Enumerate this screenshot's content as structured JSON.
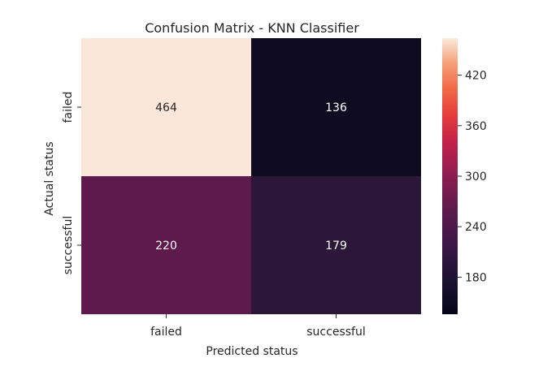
{
  "chart_data": {
    "type": "heatmap",
    "title": "Confusion Matrix - KNN Classifier",
    "xlabel": "Predicted status",
    "ylabel": "Actual status",
    "x_categories": [
      "failed",
      "successful"
    ],
    "y_categories": [
      "failed",
      "successful"
    ],
    "values": [
      [
        464,
        136
      ],
      [
        220,
        179
      ]
    ],
    "colorbar": {
      "vmin": 136,
      "vmax": 464,
      "ticks": [
        180,
        240,
        300,
        360,
        420
      ],
      "colormap": "rocket"
    },
    "cell_colors": {
      "failed_failed": "#fae7d9",
      "failed_successful": "#0f0c22",
      "successful_failed": "#5e1a4c",
      "successful_successful": "#2d1738"
    },
    "annotation_color_on_light": "#262626",
    "annotation_color_on_dark": "#ffffff"
  }
}
